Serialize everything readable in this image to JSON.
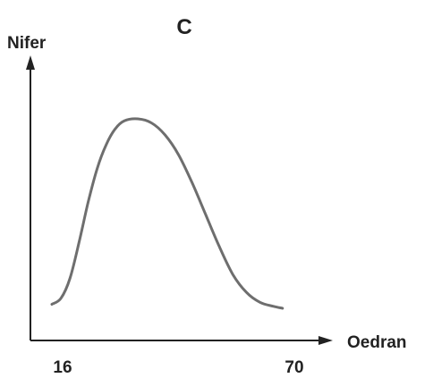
{
  "chart_data": {
    "type": "line",
    "title": "C",
    "xlabel": "Oedran",
    "ylabel": "Nifer",
    "xticks": [
      "16",
      "70"
    ],
    "xlim": [
      16,
      70
    ],
    "grid": false,
    "series": [
      {
        "values": [
          {
            "x": 16,
            "y": 0.07
          },
          {
            "x": 18,
            "y": 0.1
          },
          {
            "x": 20,
            "y": 0.2
          },
          {
            "x": 22,
            "y": 0.38
          },
          {
            "x": 24,
            "y": 0.58
          },
          {
            "x": 26,
            "y": 0.75
          },
          {
            "x": 28,
            "y": 0.87
          },
          {
            "x": 30,
            "y": 0.95
          },
          {
            "x": 32,
            "y": 0.99
          },
          {
            "x": 35,
            "y": 1.0
          },
          {
            "x": 38,
            "y": 0.98
          },
          {
            "x": 41,
            "y": 0.92
          },
          {
            "x": 44,
            "y": 0.82
          },
          {
            "x": 47,
            "y": 0.68
          },
          {
            "x": 50,
            "y": 0.52
          },
          {
            "x": 53,
            "y": 0.36
          },
          {
            "x": 56,
            "y": 0.22
          },
          {
            "x": 59,
            "y": 0.13
          },
          {
            "x": 62,
            "y": 0.08
          },
          {
            "x": 65,
            "y": 0.06
          },
          {
            "x": 67,
            "y": 0.05
          }
        ]
      }
    ],
    "colors": {
      "axis": "#222222",
      "curve": "#6e6e6e"
    }
  }
}
